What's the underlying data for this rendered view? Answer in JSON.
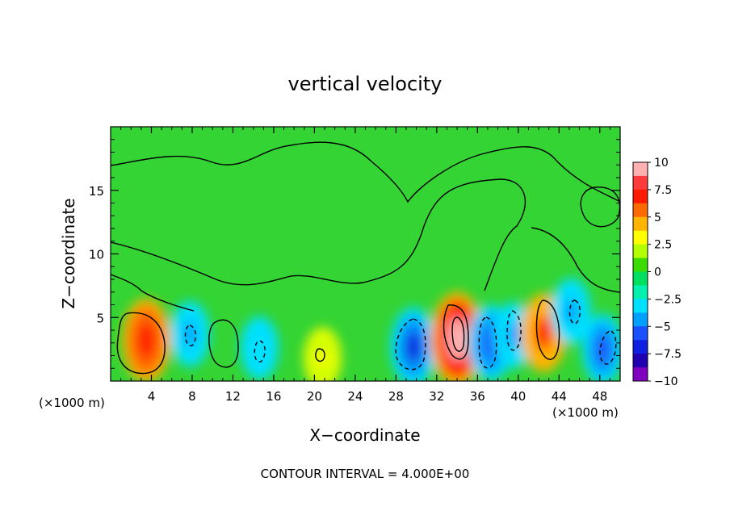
{
  "chart_data": {
    "type": "heatmap",
    "title": "vertical velocity",
    "xlabel": "X−coordinate",
    "ylabel": "Z−coordinate",
    "x_unit_left": "(×1000 m)",
    "x_unit_right": "(×1000 m)",
    "footer": "CONTOUR INTERVAL = 4.000E+00",
    "xlim": [
      0,
      50
    ],
    "ylim": [
      0,
      20
    ],
    "x_ticks": [
      4,
      8,
      12,
      16,
      20,
      24,
      28,
      32,
      36,
      40,
      44,
      48
    ],
    "y_ticks": [
      5,
      10,
      15
    ],
    "colorbar": {
      "range": [
        -10,
        10
      ],
      "ticks": [
        "10",
        "7.5",
        "5",
        "2.5",
        "0",
        "−2.5",
        "−5",
        "−7.5",
        "−10"
      ],
      "tick_values": [
        10,
        7.5,
        5,
        2.5,
        0,
        -2.5,
        -5,
        -7.5,
        -10
      ],
      "colors": [
        "#ffb0b0",
        "#ff3a3a",
        "#ff1a00",
        "#ff6a00",
        "#ffb400",
        "#ffff00",
        "#b4ff00",
        "#3cdc00",
        "#00e060",
        "#00f0b0",
        "#00e0ff",
        "#00a0ff",
        "#1a50ff",
        "#1020e0",
        "#2000b0",
        "#8000c0"
      ]
    },
    "features": [
      {
        "x": 3.5,
        "z": 3.2,
        "value": 7.5
      },
      {
        "x": 7.8,
        "z": 3.7,
        "value": -4
      },
      {
        "x": 14.6,
        "z": 2.6,
        "value": -3.5
      },
      {
        "x": 20.8,
        "z": 1.8,
        "value": 3
      },
      {
        "x": 29.7,
        "z": 2.7,
        "value": -6.5
      },
      {
        "x": 34.0,
        "z": 3.3,
        "value": 9.5
      },
      {
        "x": 37.3,
        "z": 3.0,
        "value": -6
      },
      {
        "x": 39.5,
        "z": 3.6,
        "value": -4
      },
      {
        "x": 42.5,
        "z": 3.8,
        "value": 6.5
      },
      {
        "x": 45.2,
        "z": 5.5,
        "value": -4
      },
      {
        "x": 48.3,
        "z": 2.5,
        "value": -5
      }
    ]
  }
}
